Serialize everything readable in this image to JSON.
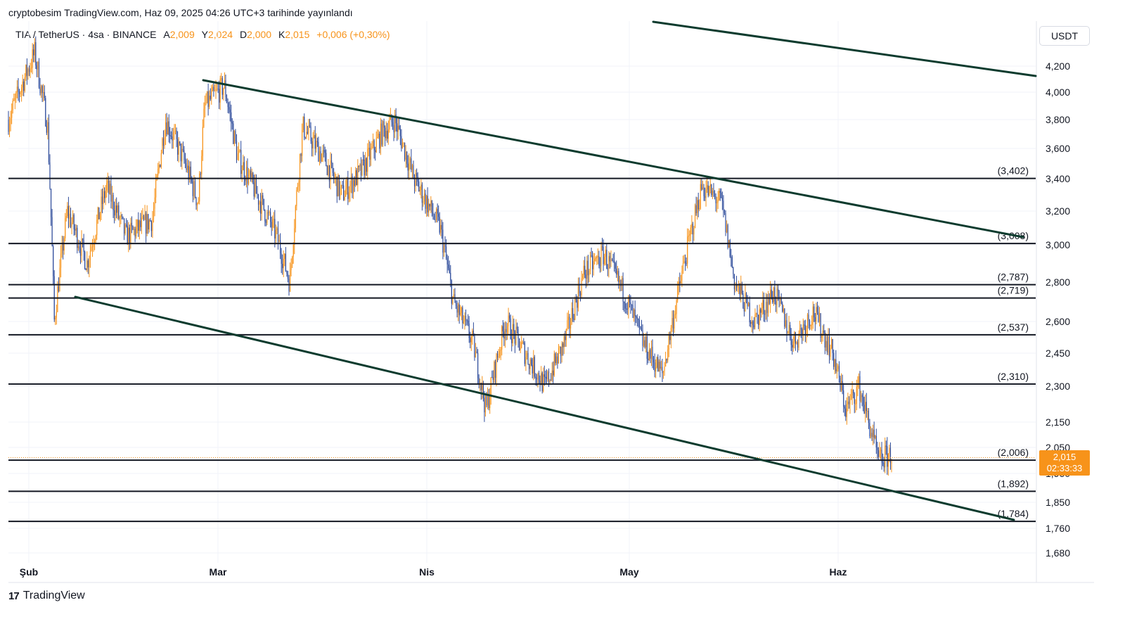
{
  "publisher": "cryptobesim TradingView.com, Haz 09, 2025 04:26 UTC+3 tarihinde yayınlandı",
  "legend": {
    "symbol": "TIA / TetherUS · 4sa · BINANCE",
    "open_label": "A",
    "open": "2,009",
    "high_label": "Y",
    "high": "2,024",
    "low_label": "D",
    "low": "2,000",
    "close_label": "K",
    "close": "2,015",
    "change": "+0,006 (+0,30%)"
  },
  "unit": "USDT",
  "brand": "TradingView",
  "price_badge": {
    "price": "2,015",
    "countdown": "02:33:33"
  },
  "colors": {
    "up": "#f7931a",
    "down": "#2c4a9a",
    "trendline": "#0d3b2e",
    "level": "#131722"
  },
  "chart_data": {
    "type": "candlestick",
    "x_tick_labels": [
      "Şub",
      "Mar",
      "Nis",
      "May",
      "Haz"
    ],
    "y_tick_labels": [
      {
        "v": 4.2,
        "t": "4,200"
      },
      {
        "v": 4.0,
        "t": "4,000"
      },
      {
        "v": 3.8,
        "t": "3,800"
      },
      {
        "v": 3.6,
        "t": "3,600"
      },
      {
        "v": 3.4,
        "t": "3,400"
      },
      {
        "v": 3.2,
        "t": "3,200"
      },
      {
        "v": 3.0,
        "t": "3,000"
      },
      {
        "v": 2.8,
        "t": "2,800"
      },
      {
        "v": 2.6,
        "t": "2,600"
      },
      {
        "v": 2.45,
        "t": "2,450"
      },
      {
        "v": 2.3,
        "t": "2,300"
      },
      {
        "v": 2.15,
        "t": "2,150"
      },
      {
        "v": 2.05,
        "t": "2,050"
      },
      {
        "v": 1.96,
        "t": "1,960"
      },
      {
        "v": 1.85,
        "t": "1,850"
      },
      {
        "v": 1.76,
        "t": "1,760"
      },
      {
        "v": 1.68,
        "t": "1,680"
      }
    ],
    "levels": [
      {
        "v": 3.402,
        "label": "(3,402)"
      },
      {
        "v": 3.008,
        "label": "(3,008)"
      },
      {
        "v": 2.787,
        "label": "(2,787)"
      },
      {
        "v": 2.719,
        "label": "(2,719)"
      },
      {
        "v": 2.537,
        "label": "(2,537)"
      },
      {
        "v": 2.31,
        "label": "(2,310)"
      },
      {
        "v": 2.006,
        "label": "(2,006)"
      },
      {
        "v": 1.892,
        "label": "(1,892)"
      },
      {
        "v": 1.784,
        "label": "(1,784)"
      }
    ],
    "last_price": 2.015,
    "price_path": [
      [
        0,
        3.8
      ],
      [
        4,
        4.3
      ],
      [
        6,
        3.75
      ],
      [
        7,
        2.6
      ],
      [
        9,
        3.2
      ],
      [
        12,
        2.9
      ],
      [
        15,
        3.35
      ],
      [
        18,
        3.05
      ],
      [
        22,
        3.15
      ],
      [
        24,
        3.8
      ],
      [
        27,
        3.5
      ],
      [
        29,
        3.25
      ],
      [
        30,
        3.9
      ],
      [
        33,
        4.05
      ],
      [
        35,
        3.55
      ],
      [
        38,
        3.3
      ],
      [
        41,
        3.05
      ],
      [
        43,
        2.8
      ],
      [
        45,
        3.75
      ],
      [
        48,
        3.55
      ],
      [
        51,
        3.3
      ],
      [
        54,
        3.45
      ],
      [
        57,
        3.7
      ],
      [
        59,
        3.8
      ],
      [
        62,
        3.4
      ],
      [
        66,
        3.1
      ],
      [
        68,
        2.7
      ],
      [
        71,
        2.5
      ],
      [
        73,
        2.2
      ],
      [
        76,
        2.6
      ],
      [
        79,
        2.45
      ],
      [
        82,
        2.3
      ],
      [
        85,
        2.5
      ],
      [
        88,
        2.85
      ],
      [
        91,
        2.95
      ],
      [
        94,
        2.75
      ],
      [
        97,
        2.5
      ],
      [
        100,
        2.35
      ],
      [
        103,
        2.85
      ],
      [
        106,
        3.35
      ],
      [
        109,
        3.25
      ],
      [
        111,
        2.8
      ],
      [
        114,
        2.6
      ],
      [
        117,
        2.75
      ],
      [
        120,
        2.5
      ],
      [
        123,
        2.65
      ],
      [
        126,
        2.45
      ],
      [
        128,
        2.2
      ],
      [
        130,
        2.3
      ],
      [
        133,
        2.0
      ],
      [
        135,
        2.03
      ]
    ]
  }
}
